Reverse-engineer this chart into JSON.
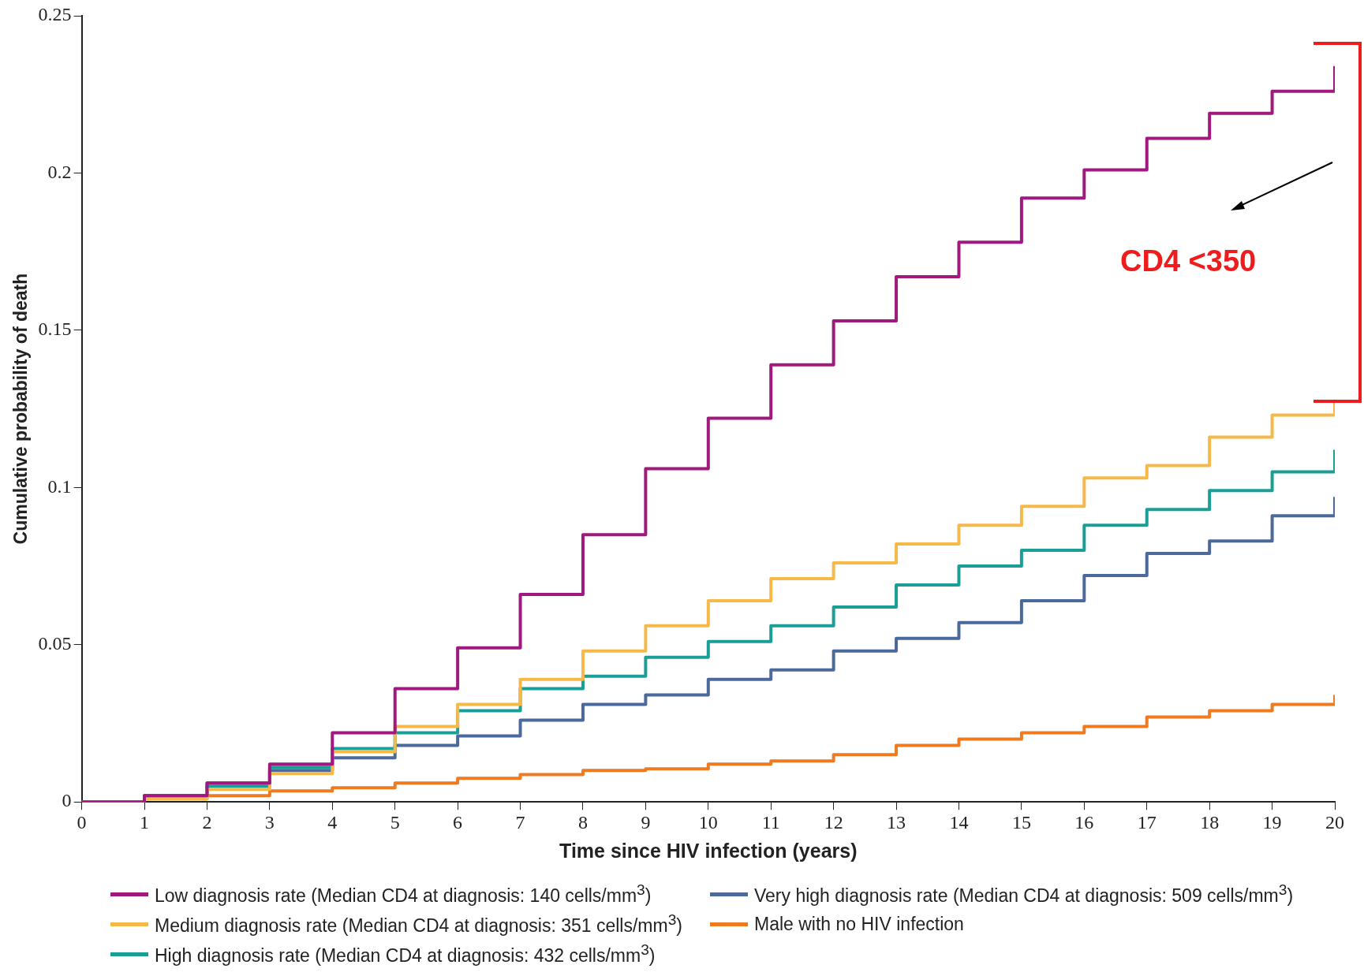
{
  "chart_data": {
    "type": "step",
    "xlabel": "Time since HIV infection (years)",
    "ylabel": "Cumulative probability of death",
    "x": [
      0,
      1,
      2,
      3,
      4,
      5,
      6,
      7,
      8,
      9,
      10,
      11,
      12,
      13,
      14,
      15,
      16,
      17,
      18,
      19,
      20
    ],
    "series": [
      {
        "name": "Low diagnosis rate (Median CD4 at diagnosis: 140 cells/mm$^{3}$)",
        "color": "#a0197f",
        "values": [
          0,
          0.002,
          0.006,
          0.012,
          0.022,
          0.036,
          0.049,
          0.066,
          0.085,
          0.106,
          0.122,
          0.139,
          0.153,
          0.167,
          0.178,
          0.192,
          0.201,
          0.211,
          0.219,
          0.226,
          0.234
        ]
      },
      {
        "name": "Medium diagnosis rate (Median CD4 at diagnosis: 351 cells/mm$^{3}$)",
        "color": "#f7b84a",
        "values": [
          0,
          0.001,
          0.004,
          0.009,
          0.016,
          0.024,
          0.031,
          0.039,
          0.048,
          0.056,
          0.064,
          0.071,
          0.076,
          0.082,
          0.088,
          0.094,
          0.103,
          0.107,
          0.116,
          0.123,
          0.128
        ]
      },
      {
        "name": "High diagnosis rate (Median CD4 at diagnosis: 432 cells/mm$^{3}$)",
        "color": "#1a9e96",
        "values": [
          0,
          0.002,
          0.005,
          0.011,
          0.017,
          0.022,
          0.029,
          0.036,
          0.04,
          0.046,
          0.051,
          0.056,
          0.062,
          0.069,
          0.075,
          0.08,
          0.088,
          0.093,
          0.099,
          0.105,
          0.112
        ]
      },
      {
        "name": "Very high diagnosis rate (Median CD4 at diagnosis: 509 cells/mm$^{3}$)",
        "color": "#4b6a9b",
        "values": [
          0,
          0.002,
          0.006,
          0.01,
          0.014,
          0.018,
          0.021,
          0.026,
          0.031,
          0.034,
          0.039,
          0.042,
          0.048,
          0.052,
          0.057,
          0.064,
          0.072,
          0.079,
          0.083,
          0.091,
          0.097
        ]
      },
      {
        "name": "Male with no HIV infection",
        "color": "#ee7a22",
        "values": [
          0,
          0.001,
          0.002,
          0.0035,
          0.0045,
          0.006,
          0.0075,
          0.0087,
          0.01,
          0.0105,
          0.012,
          0.013,
          0.015,
          0.018,
          0.02,
          0.022,
          0.024,
          0.027,
          0.029,
          0.031,
          0.034
        ]
      }
    ],
    "xlim": [
      0,
      20
    ],
    "xticks": [
      0,
      1,
      2,
      3,
      4,
      5,
      6,
      7,
      8,
      9,
      10,
      11,
      12,
      13,
      14,
      15,
      16,
      17,
      18,
      19,
      20
    ],
    "ylim": [
      0,
      0.25
    ],
    "yticks": [
      0,
      0.05,
      0.1,
      0.15,
      0.2,
      0.25
    ],
    "grid": false,
    "legend": "bottom",
    "marker": "none",
    "line_style": "solid",
    "annotations": [
      "CD4 <350"
    ]
  }
}
